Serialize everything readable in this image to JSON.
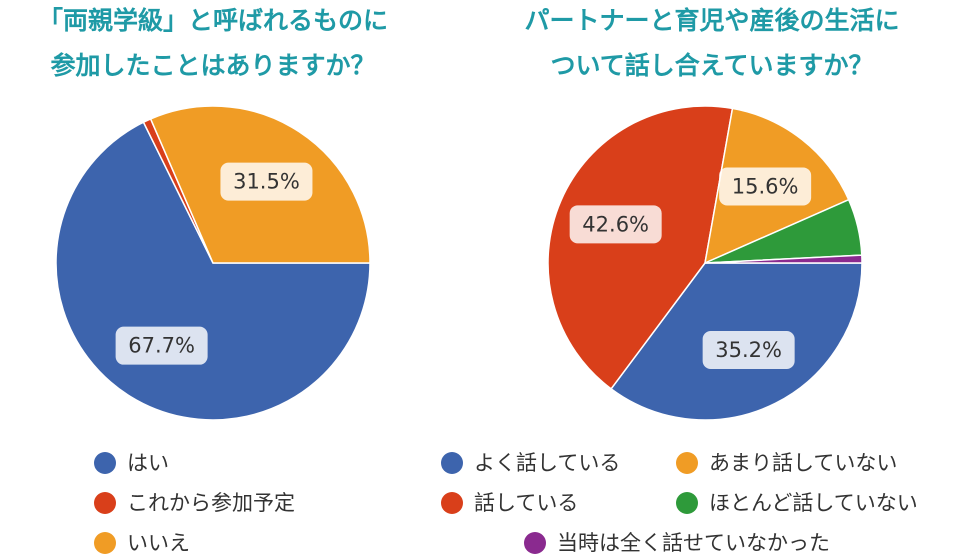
{
  "chart_data": [
    {
      "type": "pie",
      "title": [
        "「両親学級」と呼ばれるものに",
        "参加したことはありますか？"
      ],
      "categories": [
        "はい",
        "これから参加予定",
        "いいえ"
      ],
      "values": [
        67.7,
        0.8,
        31.5
      ],
      "value_labels": [
        "67.7%",
        null,
        "31.5%"
      ],
      "colors": [
        "#3d64ad",
        "#d93f1a",
        "#f09c25"
      ]
    },
    {
      "type": "pie",
      "title": [
        "パートナーと育児や産後の生活に",
        "ついて話し合えていますか？"
      ],
      "categories": [
        "よく話している",
        "話している",
        "あまり話していない",
        "ほとんど話していない",
        "当時は全く話せていなかった"
      ],
      "values": [
        35.2,
        42.6,
        15.6,
        5.8,
        0.8
      ],
      "value_labels": [
        "35.2%",
        "42.6%",
        "15.6%",
        null,
        null
      ],
      "colors": [
        "#3d64ad",
        "#d93f1a",
        "#f09c25",
        "#2e9a3a",
        "#8a2a8f"
      ]
    }
  ]
}
